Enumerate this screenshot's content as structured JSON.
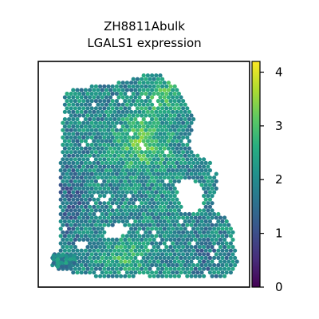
{
  "chart_data": {
    "type": "scatter",
    "title_lines": [
      "ZH8811Abulk",
      "LGALS1 expression"
    ],
    "xlabel": "",
    "ylabel": "",
    "colormap": "viridis",
    "grid": false,
    "legend": "colorbar-right",
    "colorbar": {
      "vmin": 0,
      "vmax": 4.2,
      "ticks": [
        0,
        1,
        2,
        3,
        4
      ],
      "tick_labels": [
        "0",
        "1",
        "2",
        "3",
        "4"
      ]
    },
    "value_range": [
      0,
      4.2
    ],
    "note_values": "spatial hexagonal spot expression values, mostly between 1.5 and 3.5"
  }
}
